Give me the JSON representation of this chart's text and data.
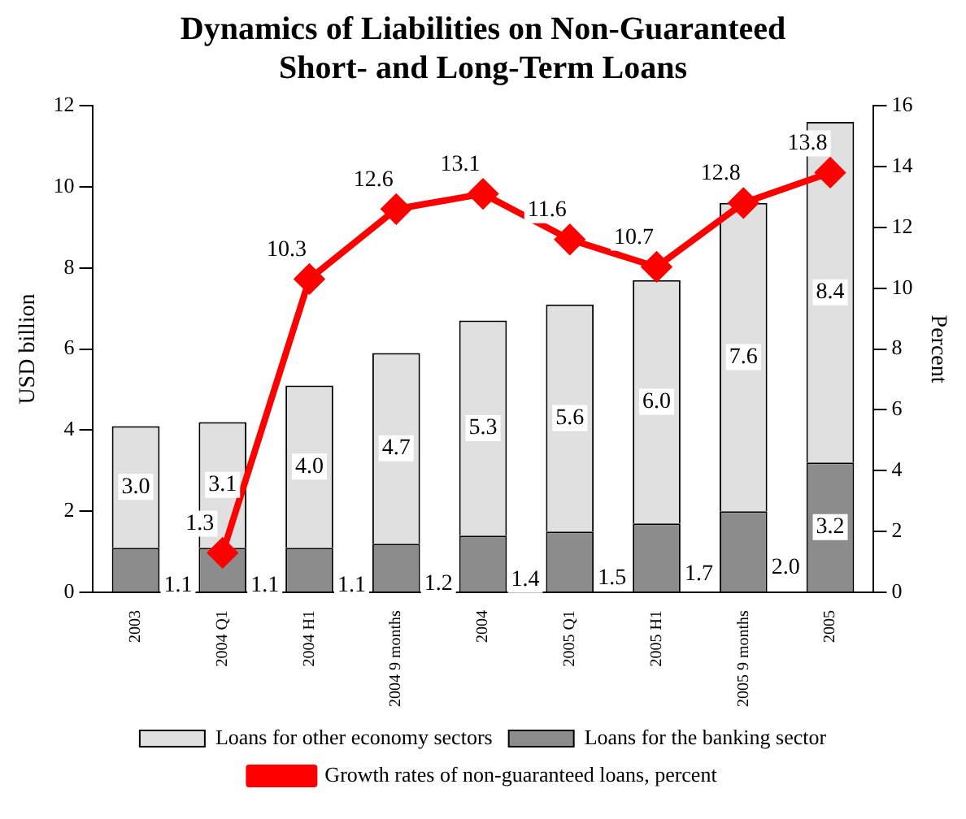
{
  "chart_data": {
    "type": "bar",
    "title": "Dynamics of Liabilities on Non-Guaranteed Short- and Long-Term Loans",
    "ylabel": "USD billion",
    "y2label": "Percent",
    "categories": [
      "2003",
      "2004 Q1",
      "2004 H1",
      "2004 9 months",
      "2004",
      "2005 Q1",
      "2005 H1",
      "2005 9 months",
      "2005"
    ],
    "stacked": true,
    "series": [
      {
        "name": "Loans for the banking sector",
        "color": "#8c8c8c",
        "values": [
          1.1,
          1.1,
          1.1,
          1.2,
          1.4,
          1.5,
          1.7,
          2.0,
          3.2
        ],
        "value_labels": [
          "1.1",
          "1.1",
          "1.1",
          "1.2",
          "1.4",
          "1.5",
          "1.7",
          "2.0",
          "3.2"
        ]
      },
      {
        "name": "Loans for other economy sectors",
        "color": "#e0e0e0",
        "values": [
          3.0,
          3.1,
          4.0,
          4.7,
          5.3,
          5.6,
          6.0,
          7.6,
          8.4
        ],
        "value_labels": [
          "3.0",
          "3.1",
          "4.0",
          "4.7",
          "5.3",
          "5.6",
          "6.0",
          "7.6",
          "8.4"
        ]
      },
      {
        "name": "Growth rates of non-guaranteed loans, percent",
        "type": "line",
        "axis": "y2",
        "color": "#ff0000",
        "marker": "diamond",
        "values": [
          null,
          1.3,
          10.3,
          12.6,
          13.1,
          11.6,
          10.7,
          12.8,
          13.8
        ],
        "value_labels": [
          null,
          "1.3",
          "10.3",
          "12.6",
          "13.1",
          "11.6",
          "10.7",
          "12.8",
          "13.8"
        ]
      }
    ],
    "ylim": [
      0,
      12
    ],
    "yticks": [
      0,
      2,
      4,
      6,
      8,
      10,
      12
    ],
    "y2lim": [
      0,
      16
    ],
    "y2ticks": [
      0,
      2,
      4,
      6,
      8,
      10,
      12,
      14,
      16
    ],
    "grid": false,
    "legend": "bottom"
  }
}
